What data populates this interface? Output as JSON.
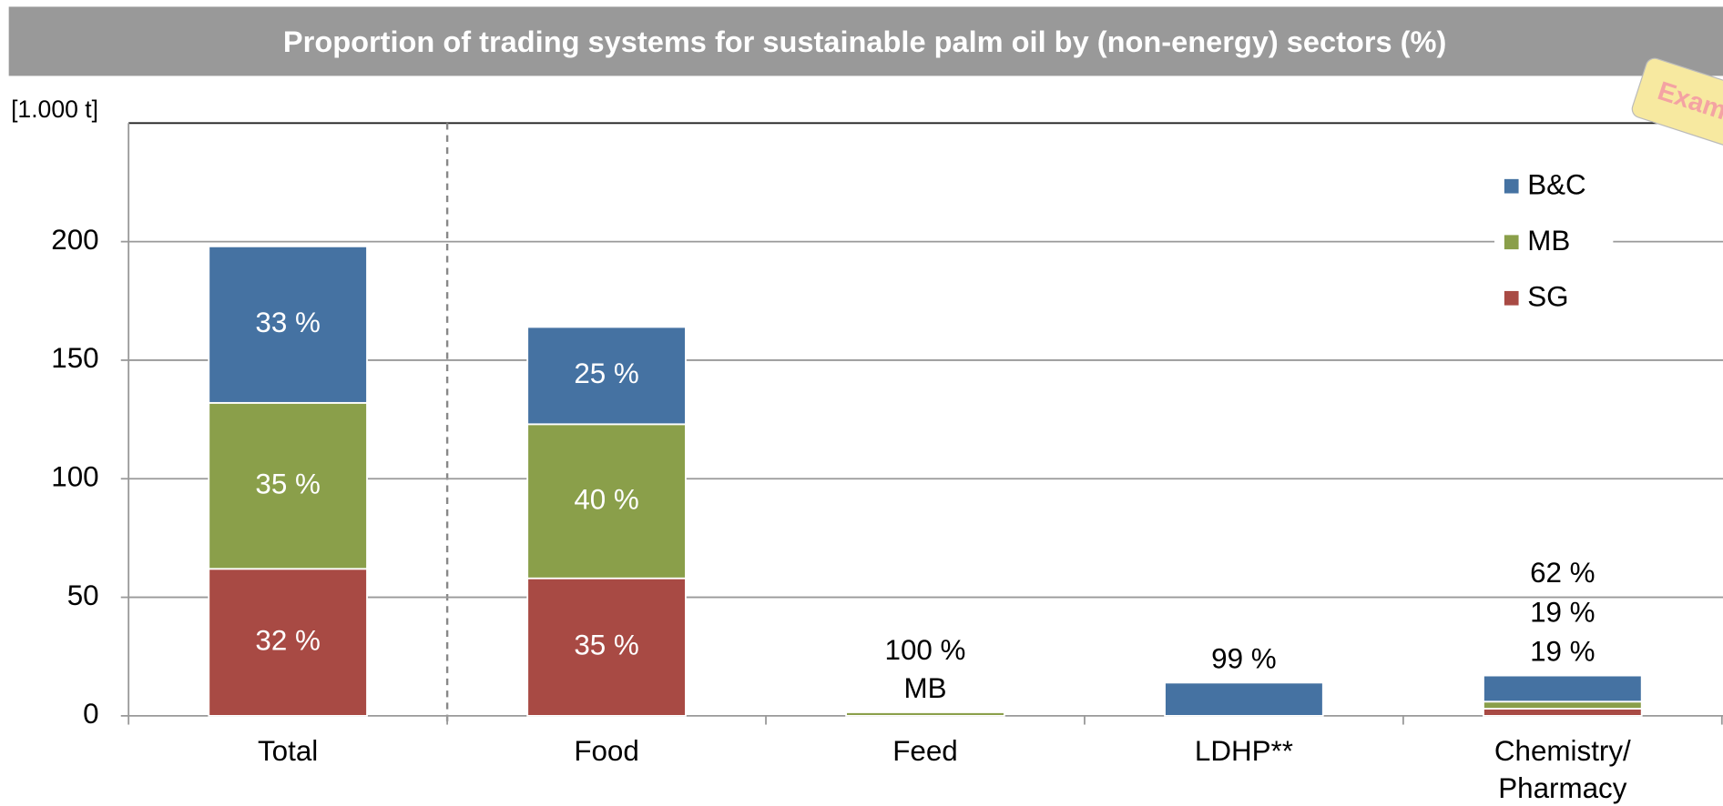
{
  "chart_data": {
    "type": "bar",
    "stacked": true,
    "title": "Proportion of trading systems for sustainable palm oil by (non-energy) sectors (%)",
    "y_label": "[1.000 t]",
    "stamp": "Exam",
    "categories": [
      "Total",
      "Food",
      "Feed",
      "LDHP**",
      "Chemistry/Pharmacy"
    ],
    "series": [
      {
        "name": "SG",
        "color": "#a84a44",
        "values": [
          62,
          58,
          0,
          0,
          3
        ],
        "share_labels": [
          "32 %",
          "35 %",
          null,
          null,
          "19 %"
        ]
      },
      {
        "name": "MB",
        "color": "#8a9f4a",
        "values": [
          70,
          65,
          1.5,
          0,
          3
        ],
        "share_labels": [
          "35 %",
          "40 %",
          "100 %",
          null,
          "19 %"
        ]
      },
      {
        "name": "B&C",
        "color": "#4572a2",
        "values": [
          66,
          41,
          0,
          14,
          11
        ],
        "share_labels": [
          "33 %",
          "25 %",
          null,
          "99 %",
          "62 %"
        ]
      }
    ],
    "notes": [
      null,
      null,
      "MB",
      null,
      null
    ],
    "ylim": [
      0,
      250
    ],
    "yticks": [
      0,
      50,
      100,
      150,
      200
    ],
    "grid": true
  }
}
